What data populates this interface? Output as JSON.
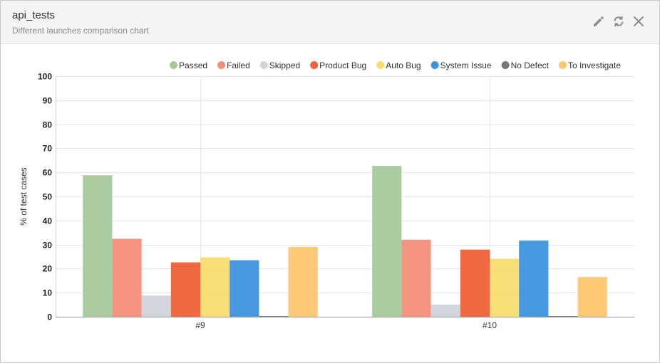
{
  "header": {
    "title": "api_tests",
    "subtitle": "Different launches comparison chart"
  },
  "icons": {
    "edit": "pencil-icon",
    "refresh": "refresh-icon",
    "close": "close-icon",
    "color": "#8c8c8c"
  },
  "chart_data": {
    "type": "bar",
    "ylabel": "% of test cases",
    "ylim": [
      0,
      100
    ],
    "yticks": [
      0,
      10,
      20,
      30,
      40,
      50,
      60,
      70,
      80,
      90,
      100
    ],
    "grid": true,
    "legend_position": "top-right",
    "categories": [
      "#9",
      "#10"
    ],
    "series": [
      {
        "name": "Passed",
        "color": "#a6c99c",
        "values": [
          58.8,
          62.7
        ]
      },
      {
        "name": "Failed",
        "color": "#f48f7a",
        "values": [
          32.4,
          32.0
        ]
      },
      {
        "name": "Skipped",
        "color": "#d0d3d9",
        "values": [
          8.8,
          5.0
        ]
      },
      {
        "name": "Product Bug",
        "color": "#ef6136",
        "values": [
          22.6,
          27.9
        ]
      },
      {
        "name": "Auto Bug",
        "color": "#f8dd6e",
        "values": [
          24.7,
          24.1
        ]
      },
      {
        "name": "System Issue",
        "color": "#3f93dc",
        "values": [
          23.5,
          31.7
        ]
      },
      {
        "name": "No Defect",
        "color": "#777777",
        "values": [
          0.3,
          0.3
        ]
      },
      {
        "name": "To Investigate",
        "color": "#fec66f",
        "values": [
          29.0,
          16.5
        ]
      }
    ]
  }
}
